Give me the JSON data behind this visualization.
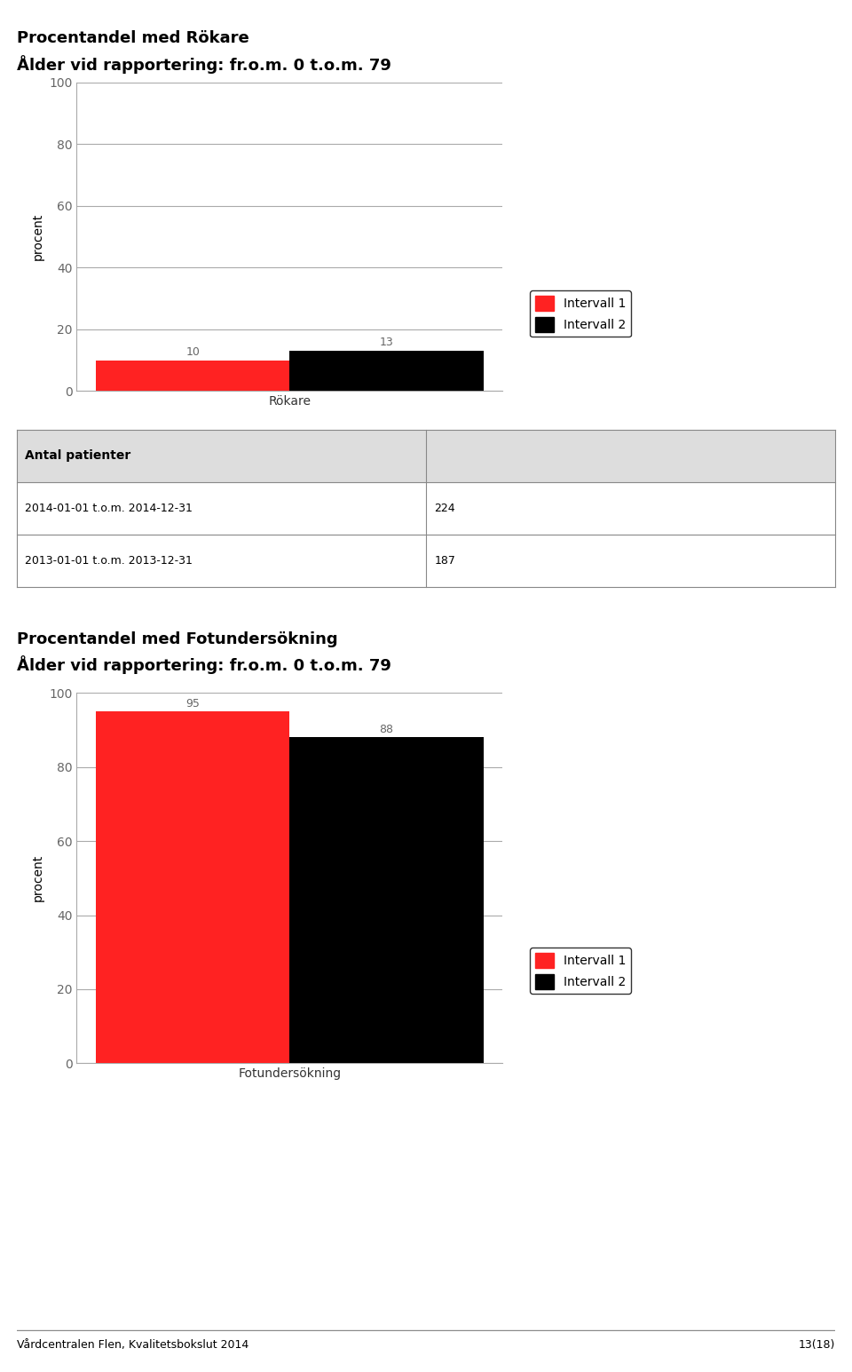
{
  "chart1_title": "Procentandel med Rökare",
  "chart1_subtitle": "Ålder vid rapportering: fr.o.m. 0 t.o.m. 79",
  "chart1_categories": [
    "Rökare"
  ],
  "chart1_values1": [
    10
  ],
  "chart1_values2": [
    13
  ],
  "chart1_ylabel": "procent",
  "chart1_ylim": [
    0,
    100
  ],
  "chart1_yticks": [
    0,
    20,
    40,
    60,
    80,
    100
  ],
  "table_header": "Antal patienter",
  "table_row1_label": "2014-01-01 t.o.m. 2014-12-31",
  "table_row1_value": "224",
  "table_row2_label": "2013-01-01 t.o.m. 2013-12-31",
  "table_row2_value": "187",
  "chart2_title": "Procentandel med Fotundersökning",
  "chart2_subtitle": "Ålder vid rapportering: fr.o.m. 0 t.o.m. 79",
  "chart2_categories": [
    "Fotundersökning"
  ],
  "chart2_values1": [
    95
  ],
  "chart2_values2": [
    88
  ],
  "chart2_ylabel": "procent",
  "chart2_ylim": [
    0,
    100
  ],
  "chart2_yticks": [
    0,
    20,
    40,
    60,
    80,
    100
  ],
  "color_interval1": "#FF2222",
  "color_interval2": "#000000",
  "legend_label1": "Intervall 1",
  "legend_label2": "Intervall 2",
  "footer_left": "Vårdcentralen Flen, Kvalitetsbokslut 2014",
  "footer_right": "13(18)",
  "background_color": "#ffffff",
  "grid_color": "#aaaaaa",
  "title_fontsize": 13,
  "axis_fontsize": 10,
  "label_fontsize": 9
}
